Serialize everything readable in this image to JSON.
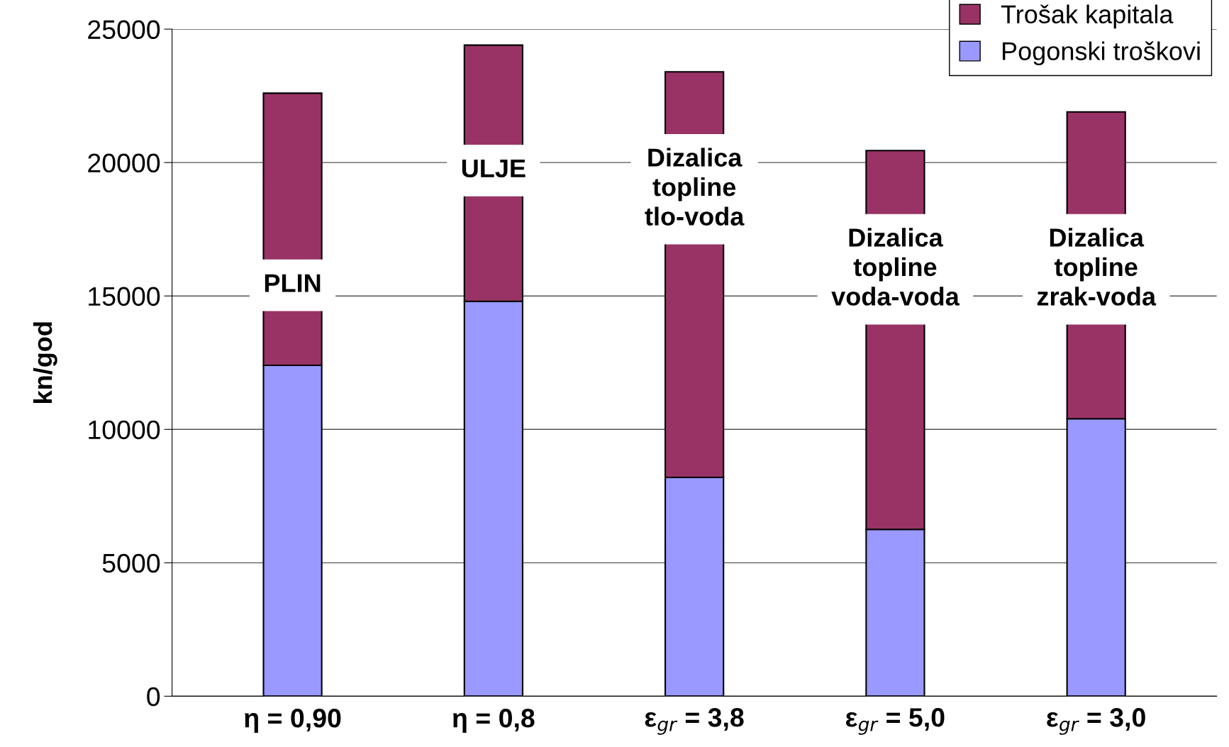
{
  "chart_data": {
    "type": "bar",
    "stacked": true,
    "ylabel": "kn/god",
    "categories": [
      "η = 0,90",
      "η = 0,8",
      "ε$_{gr}$ = 3,8",
      "ε$_{gr}$ = 5,0",
      "ε$_{gr}$ = 3,0"
    ],
    "series": [
      {
        "name": "Pogonski troškovi",
        "color": "#9999ff",
        "values": [
          12400,
          14800,
          8200,
          6250,
          10400
        ]
      },
      {
        "name": "Trošak kapitala",
        "color": "#993366",
        "values": [
          10200,
          9600,
          15200,
          14200,
          11500
        ]
      }
    ],
    "ylim": [
      0,
      25000
    ],
    "yticks": [
      0,
      5000,
      10000,
      15000,
      20000,
      25000
    ],
    "grid": "y",
    "legend": "top right",
    "annotations": [
      "PLIN",
      "ULJE",
      "Dizalica\ntopline\ntlo-voda",
      "Dizalica\ntopline\nvoda-voda",
      "Dizalica\ntopline\nzrak-voda"
    ]
  }
}
